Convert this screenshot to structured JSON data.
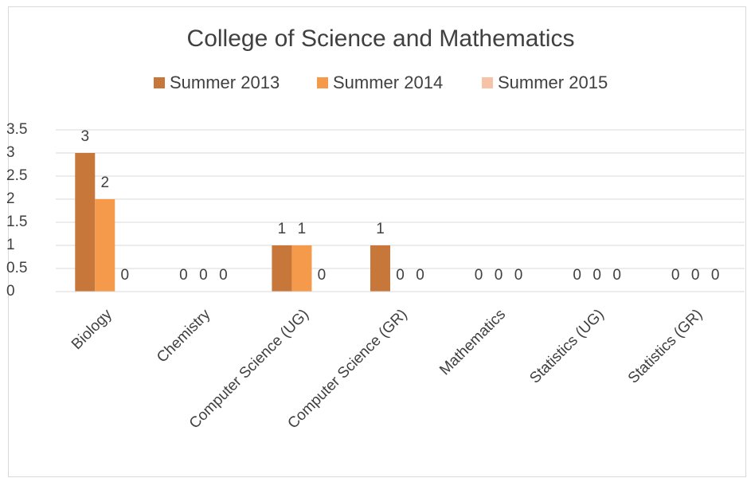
{
  "chart_data": {
    "type": "bar",
    "title": "College of Science and Mathematics",
    "categories": [
      "Biology",
      "Chemistry",
      "Computer Science (UG)",
      "Computer Science (GR)",
      "Mathematics",
      "Statistics (UG)",
      "Statistics (GR)"
    ],
    "series": [
      {
        "name": "Summer 2013",
        "color": "#c8773a",
        "values": [
          3,
          0,
          1,
          1,
          0,
          0,
          0
        ]
      },
      {
        "name": "Summer 2014",
        "color": "#f5994a",
        "values": [
          2,
          0,
          1,
          0,
          0,
          0,
          0
        ]
      },
      {
        "name": "Summer 2015",
        "color": "#f7c3a6",
        "values": [
          0,
          0,
          0,
          0,
          0,
          0,
          0
        ]
      }
    ],
    "ylim": [
      0,
      3.5
    ],
    "yticks": [
      0,
      0.5,
      1,
      1.5,
      2,
      2.5,
      3,
      3.5
    ],
    "grid": true,
    "legend": "top"
  }
}
